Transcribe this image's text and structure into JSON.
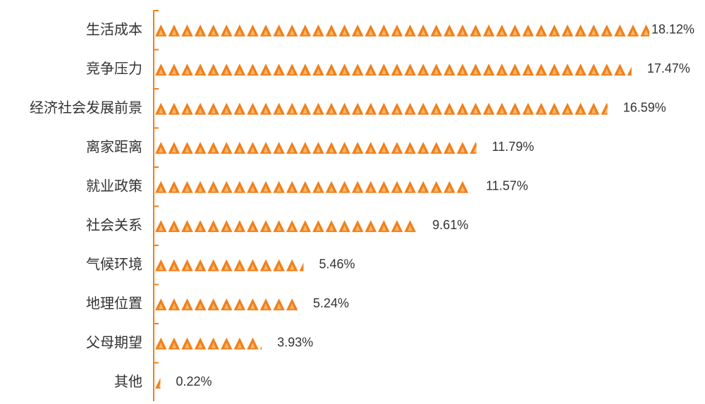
{
  "chart_data": {
    "type": "bar",
    "orientation": "horizontal",
    "color": "#f07f1a",
    "categories": [
      "生活成本",
      "竞争压力",
      "经济社会发展前景",
      "离家距离",
      "就业政策",
      "社会关系",
      "气候环境",
      "地理位置",
      "父母期望",
      "其他"
    ],
    "values": [
      18.12,
      17.47,
      16.59,
      11.79,
      11.57,
      9.61,
      5.46,
      5.24,
      3.93,
      0.22
    ],
    "value_labels": [
      "18.12%",
      "17.47%",
      "16.59%",
      "11.79%",
      "11.57%",
      "9.61%",
      "5.46%",
      "5.24%",
      "3.93%",
      "0.22%"
    ]
  }
}
